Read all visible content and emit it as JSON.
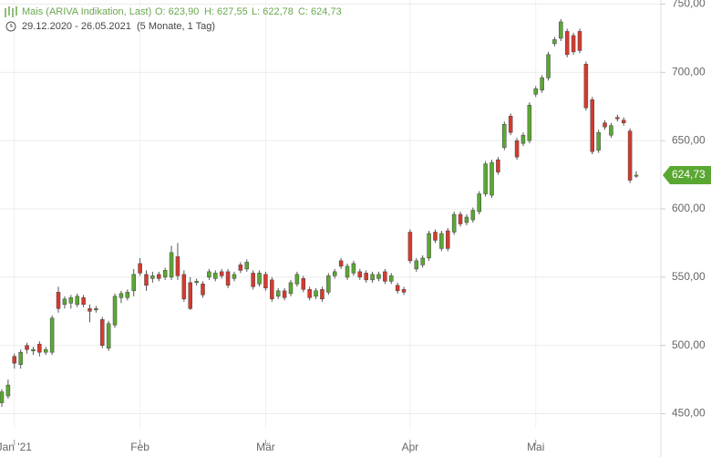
{
  "header": {
    "title": "Mais (ARIVA Indikation, Last)",
    "open": "O: 623,90",
    "high": "H: 627,55",
    "low": "L: 622,78",
    "close": "C: 624,73",
    "range": "29.12.2020 - 26.05.2021",
    "period": "(5 Monate, 1 Tag)"
  },
  "chart_data": {
    "type": "candlestick",
    "up_color": "#5aa832",
    "down_color": "#d63a2f",
    "ylim": [
      439,
      753
    ],
    "yticks": [
      {
        "value": 450,
        "label": "450,00"
      },
      {
        "value": 500,
        "label": "500,00"
      },
      {
        "value": 550,
        "label": "550,00"
      },
      {
        "value": 600,
        "label": "600,00"
      },
      {
        "value": 650,
        "label": "650,00"
      },
      {
        "value": 700,
        "label": "700,00"
      },
      {
        "value": 750,
        "label": "750,00"
      }
    ],
    "grid": true,
    "last": {
      "value": 624.73,
      "label": "624,73"
    },
    "categories": [
      null,
      null,
      "Jan '21",
      null,
      null,
      null,
      null,
      null,
      null,
      null,
      null,
      null,
      null,
      null,
      null,
      null,
      null,
      null,
      null,
      null,
      null,
      null,
      "Feb",
      null,
      null,
      null,
      null,
      null,
      null,
      null,
      null,
      null,
      null,
      null,
      null,
      null,
      null,
      null,
      null,
      null,
      null,
      null,
      "Mär",
      null,
      null,
      null,
      null,
      null,
      null,
      null,
      null,
      null,
      null,
      null,
      null,
      null,
      null,
      null,
      null,
      null,
      null,
      null,
      null,
      null,
      null,
      "Apr",
      null,
      null,
      null,
      null,
      null,
      null,
      null,
      null,
      null,
      null,
      null,
      null,
      null,
      null,
      null,
      null,
      null,
      null,
      null,
      "Mai",
      null,
      null,
      null,
      null,
      null,
      null,
      null,
      null,
      null,
      null,
      null,
      null,
      null,
      null,
      null,
      null
    ],
    "ohlc": [
      [
        458,
        468,
        455,
        466
      ],
      [
        463,
        475,
        461,
        471
      ],
      [
        492,
        494,
        483,
        487
      ],
      [
        486,
        497,
        483,
        495
      ],
      [
        500,
        502,
        494,
        497
      ],
      [
        496,
        499,
        493,
        497
      ],
      [
        501,
        503,
        492,
        495
      ],
      [
        495,
        499,
        493,
        497
      ],
      [
        495,
        522,
        493,
        520
      ],
      [
        539,
        543,
        524,
        527
      ],
      [
        530,
        536,
        527,
        534
      ],
      [
        531,
        537,
        527,
        535
      ],
      [
        530,
        538,
        528,
        536
      ],
      [
        535,
        537,
        528,
        530
      ],
      [
        527,
        530,
        517,
        525
      ],
      [
        526,
        529,
        524,
        527
      ],
      [
        519,
        521,
        498,
        500
      ],
      [
        498,
        518,
        496,
        516
      ],
      [
        515,
        538,
        513,
        536
      ],
      [
        535,
        540,
        531,
        538
      ],
      [
        535,
        541,
        533,
        539
      ],
      [
        540,
        556,
        536,
        552
      ],
      [
        560,
        564,
        551,
        553
      ],
      [
        552,
        555,
        540,
        544
      ],
      [
        549,
        554,
        546,
        551
      ],
      [
        552,
        554,
        547,
        549
      ],
      [
        550,
        557,
        548,
        555
      ],
      [
        550,
        573,
        548,
        568
      ],
      [
        565,
        575,
        548,
        551
      ],
      [
        552,
        555,
        532,
        534
      ],
      [
        546,
        550,
        526,
        527
      ],
      [
        546,
        549,
        544,
        547
      ],
      [
        545,
        547,
        535,
        537
      ],
      [
        550,
        556,
        548,
        554
      ],
      [
        549,
        555,
        547,
        553
      ],
      [
        554,
        556,
        549,
        551
      ],
      [
        554,
        556,
        542,
        544
      ],
      [
        549,
        554,
        547,
        552
      ],
      [
        559,
        561,
        553,
        555
      ],
      [
        556,
        563,
        554,
        561
      ],
      [
        553,
        555,
        541,
        543
      ],
      [
        545,
        555,
        543,
        553
      ],
      [
        552,
        554,
        540,
        542
      ],
      [
        548,
        550,
        532,
        534
      ],
      [
        536,
        542,
        534,
        540
      ],
      [
        540,
        542,
        533,
        535
      ],
      [
        538,
        548,
        536,
        546
      ],
      [
        545,
        554,
        543,
        552
      ],
      [
        549,
        551,
        539,
        541
      ],
      [
        541,
        543,
        533,
        535
      ],
      [
        536,
        542,
        534,
        540
      ],
      [
        541,
        543,
        532,
        534
      ],
      [
        539,
        553,
        537,
        551
      ],
      [
        551,
        556,
        549,
        554
      ],
      [
        562,
        564,
        556,
        558
      ],
      [
        550,
        560,
        548,
        558
      ],
      [
        553,
        562,
        551,
        560
      ],
      [
        554,
        556,
        548,
        550
      ],
      [
        553,
        555,
        546,
        548
      ],
      [
        548,
        554,
        546,
        552
      ],
      [
        549,
        554,
        547,
        552
      ],
      [
        554,
        556,
        545,
        547
      ],
      [
        547,
        553,
        545,
        551
      ],
      [
        544,
        546,
        538,
        540
      ],
      [
        541,
        543,
        537,
        539
      ],
      [
        583,
        585,
        560,
        562
      ],
      [
        556,
        564,
        554,
        562
      ],
      [
        559,
        566,
        557,
        564
      ],
      [
        564,
        584,
        562,
        582
      ],
      [
        583,
        585,
        575,
        577
      ],
      [
        571,
        584,
        569,
        582
      ],
      [
        584,
        586,
        569,
        571
      ],
      [
        583,
        598,
        581,
        596
      ],
      [
        596,
        598,
        587,
        589
      ],
      [
        590,
        596,
        588,
        594
      ],
      [
        592,
        601,
        590,
        599
      ],
      [
        598,
        613,
        596,
        611
      ],
      [
        611,
        635,
        609,
        633
      ],
      [
        610,
        636,
        608,
        634
      ],
      [
        636,
        638,
        625,
        627
      ],
      [
        645,
        664,
        643,
        662
      ],
      [
        668,
        670,
        654,
        656
      ],
      [
        650,
        652,
        636,
        638
      ],
      [
        648,
        656,
        646,
        654
      ],
      [
        650,
        678,
        648,
        676
      ],
      [
        684,
        690,
        682,
        688
      ],
      [
        687,
        698,
        685,
        696
      ],
      [
        696,
        715,
        694,
        713
      ],
      [
        721,
        726,
        719,
        724
      ],
      [
        725,
        739,
        723,
        737
      ],
      [
        730,
        732,
        711,
        713
      ],
      [
        727,
        729,
        713,
        715
      ],
      [
        730,
        732,
        714,
        716
      ],
      [
        706,
        708,
        672,
        674
      ],
      [
        680,
        682,
        640,
        642
      ],
      [
        643,
        658,
        641,
        656
      ],
      [
        663,
        665,
        658,
        660
      ],
      [
        654,
        663,
        652,
        661
      ],
      [
        667,
        669,
        664,
        666
      ],
      [
        665,
        667,
        661,
        663
      ],
      [
        657,
        659,
        619,
        621
      ],
      [
        623.9,
        627.55,
        622.78,
        624.73
      ]
    ]
  }
}
